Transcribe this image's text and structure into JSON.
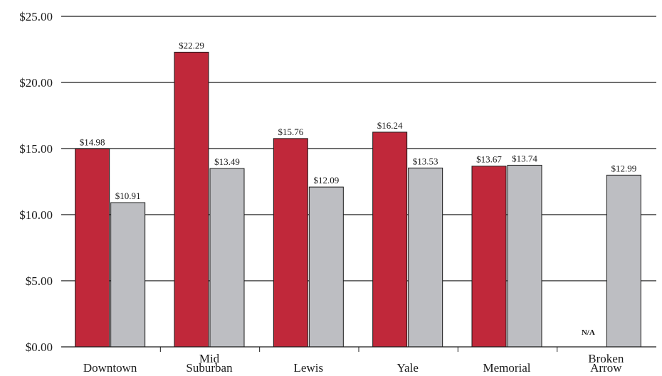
{
  "chart_data": {
    "type": "bar",
    "title": "",
    "xlabel": "",
    "ylabel": "",
    "ylim": [
      0,
      25
    ],
    "yticks": [
      0,
      5,
      10,
      15,
      20,
      25
    ],
    "ytick_labels": [
      "$0.00",
      "$5.00",
      "$10.00",
      "$15.00",
      "$20.00",
      "$25.00"
    ],
    "grid": true,
    "categories": [
      [
        "Downtown"
      ],
      [
        "Mid",
        "Suburban"
      ],
      [
        "Lewis"
      ],
      [
        "Yale"
      ],
      [
        "Memorial"
      ],
      [
        "Broken",
        "Arrow"
      ]
    ],
    "series": [
      {
        "values": [
          14.98,
          22.29,
          15.76,
          16.24,
          13.67,
          null
        ],
        "labels": [
          "$14.98",
          "$22.29",
          "$15.76",
          "$16.24",
          "$13.67",
          "N/A"
        ],
        "color": "#c0283a"
      },
      {
        "values": [
          10.91,
          13.49,
          12.09,
          13.53,
          13.74,
          12.99
        ],
        "labels": [
          "$10.91",
          "$13.49",
          "$12.09",
          "$13.53",
          "$13.74",
          "$12.99"
        ],
        "color": "#bdbec2"
      }
    ]
  }
}
